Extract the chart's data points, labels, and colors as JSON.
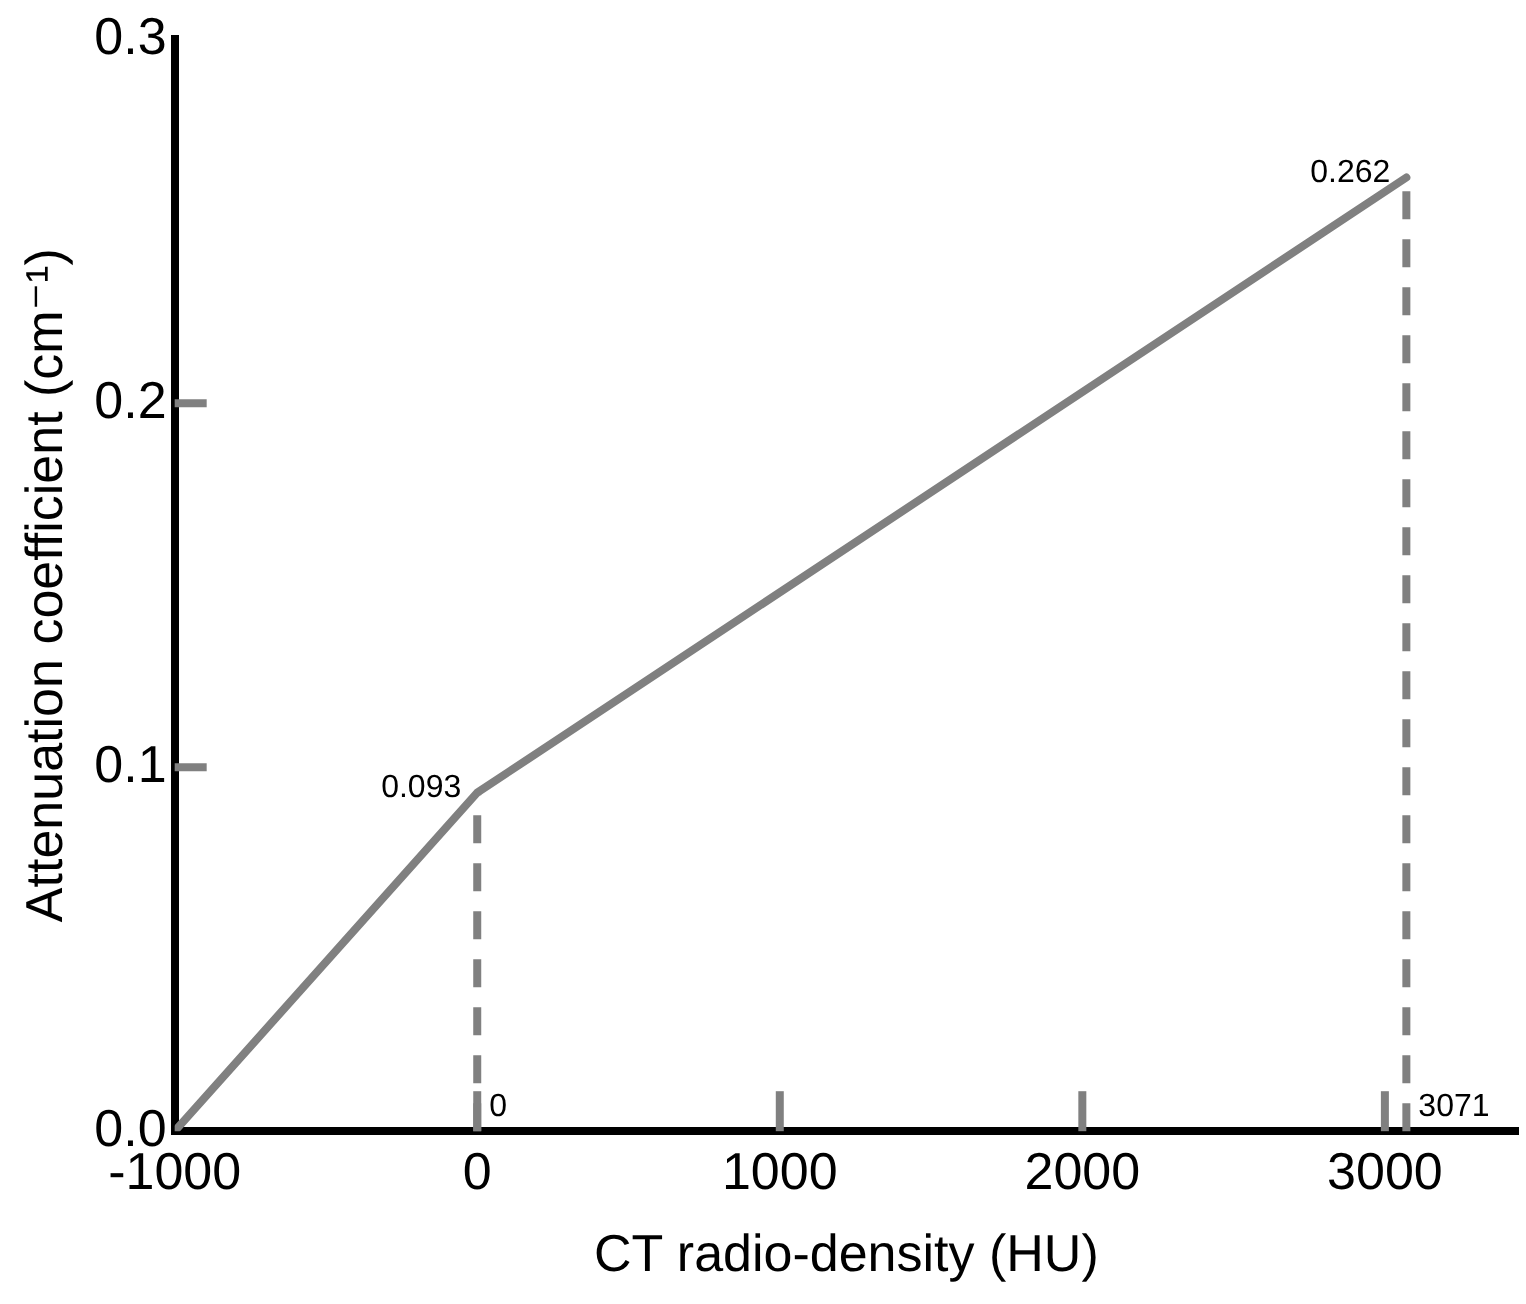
{
  "chart_data": {
    "type": "line",
    "xlabel": "CT radio-density (HU)",
    "ylabel": "Attenuation coefficient (cm⁻¹)",
    "x": [
      -1000,
      0,
      3071
    ],
    "series": [
      {
        "color": "#808080",
        "values": [
          0,
          0.093,
          0.262
        ]
      }
    ],
    "xlim": [
      -1000,
      3440
    ],
    "xticks": [
      -1000,
      0,
      1000,
      2000,
      3000
    ],
    "ylim": [
      0,
      0.3
    ],
    "yticks": [
      {
        "value": 0,
        "label": "0.0"
      },
      {
        "value": 0.1,
        "label": "0.1"
      },
      {
        "value": 0.2,
        "label": "0.2"
      },
      {
        "value": 0.3,
        "label": "0.3"
      }
    ],
    "grid": false,
    "legend": false,
    "marker": "none",
    "line_style": "solid",
    "ref_lines": [
      {
        "axis": "x",
        "value": 0,
        "label": "0",
        "color": "#808080",
        "line_style": "dashed"
      },
      {
        "axis": "x",
        "value": 3071,
        "label": "3071",
        "color": "#808080",
        "line_style": "dashed"
      }
    ],
    "annotations": [
      {
        "text": "0.093",
        "x": 0,
        "y": 0.093
      },
      {
        "text": "0.262",
        "x": 3071,
        "y": 0.262
      }
    ]
  }
}
